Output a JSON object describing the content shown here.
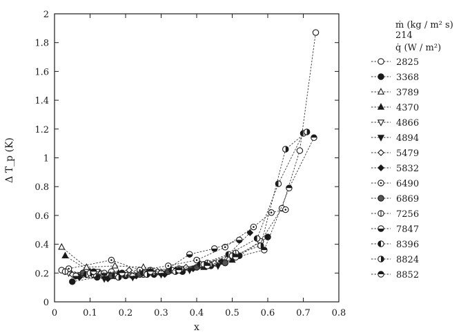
{
  "chart_data": {
    "type": "line",
    "xlabel": "x",
    "ylabel": "Δ T_p (K)",
    "xlim": [
      0,
      0.8
    ],
    "ylim": [
      0,
      2
    ],
    "xticks": [
      "0",
      "0.1",
      "0.2",
      "0.3",
      "0.4",
      "0.5",
      "0.6",
      "0.7",
      "0.8"
    ],
    "yticks": [
      "0",
      "0.2",
      "0.4",
      "0.6",
      "0.8",
      "1",
      "1.2",
      "1.4",
      "1.6",
      "1.8",
      "2"
    ],
    "grid": false,
    "legend_placement": "outside-right",
    "legend_header": {
      "mass_flux_label": "ṁ (kg / m² s)",
      "mass_flux_value": "214",
      "heat_flux_label": "q̇ (W / m²)"
    },
    "series": [
      {
        "name": "2825",
        "marker": "circle-open",
        "x": [
          0.02,
          0.08,
          0.16,
          0.25,
          0.33,
          0.42,
          0.5,
          0.58,
          0.64,
          0.69,
          0.735
        ],
        "y": [
          0.22,
          0.2,
          0.21,
          0.19,
          0.22,
          0.25,
          0.3,
          0.42,
          0.65,
          1.05,
          1.87
        ]
      },
      {
        "name": "3368",
        "marker": "circle-filled",
        "x": [
          0.05,
          0.12,
          0.2,
          0.28,
          0.36,
          0.44,
          0.52,
          0.6
        ],
        "y": [
          0.14,
          0.17,
          0.18,
          0.19,
          0.21,
          0.25,
          0.32,
          0.45
        ]
      },
      {
        "name": "3789",
        "marker": "triangle-up-open",
        "x": [
          0.02,
          0.09,
          0.17,
          0.25,
          0.33,
          0.41,
          0.49
        ],
        "y": [
          0.38,
          0.24,
          0.25,
          0.24,
          0.22,
          0.26,
          0.3
        ]
      },
      {
        "name": "4370",
        "marker": "triangle-up-filled",
        "x": [
          0.03,
          0.1,
          0.18,
          0.26,
          0.34,
          0.42,
          0.5
        ],
        "y": [
          0.32,
          0.21,
          0.2,
          0.2,
          0.22,
          0.24,
          0.29
        ]
      },
      {
        "name": "4866",
        "marker": "triangle-down-open",
        "x": [
          0.04,
          0.12,
          0.2,
          0.28,
          0.36,
          0.44
        ],
        "y": [
          0.2,
          0.21,
          0.19,
          0.2,
          0.23,
          0.26
        ]
      },
      {
        "name": "4894",
        "marker": "triangle-down-filled",
        "x": [
          0.06,
          0.14,
          0.22,
          0.3,
          0.38,
          0.46
        ],
        "y": [
          0.18,
          0.16,
          0.17,
          0.19,
          0.22,
          0.25
        ]
      },
      {
        "name": "5479",
        "marker": "diamond-open",
        "x": [
          0.05,
          0.13,
          0.21,
          0.29,
          0.37,
          0.45
        ],
        "y": [
          0.19,
          0.2,
          0.22,
          0.21,
          0.24,
          0.27
        ]
      },
      {
        "name": "5832",
        "marker": "diamond-filled",
        "x": [
          0.07,
          0.15,
          0.23,
          0.31,
          0.39,
          0.47,
          0.55
        ],
        "y": [
          0.17,
          0.16,
          0.18,
          0.19,
          0.23,
          0.28,
          0.48
        ]
      },
      {
        "name": "6490",
        "marker": "circle-dot",
        "x": [
          0.04,
          0.16,
          0.24,
          0.32,
          0.4,
          0.48,
          0.56,
          0.61,
          0.65
        ],
        "y": [
          0.23,
          0.29,
          0.22,
          0.25,
          0.29,
          0.38,
          0.52,
          0.62,
          0.64
        ]
      },
      {
        "name": "6869",
        "marker": "circle-filled-grey",
        "x": [
          0.08,
          0.16,
          0.24,
          0.32,
          0.4,
          0.48
        ],
        "y": [
          0.2,
          0.18,
          0.19,
          0.21,
          0.24,
          0.27
        ]
      },
      {
        "name": "7256",
        "marker": "circle-bar",
        "x": [
          0.03,
          0.11,
          0.19,
          0.27,
          0.35,
          0.43,
          0.51
        ],
        "y": [
          0.21,
          0.19,
          0.2,
          0.22,
          0.23,
          0.27,
          0.34
        ]
      },
      {
        "name": "7847",
        "marker": "circle-half-lower",
        "x": [
          0.06,
          0.14,
          0.22,
          0.3,
          0.38,
          0.45,
          0.52
        ],
        "y": [
          0.18,
          0.2,
          0.18,
          0.2,
          0.33,
          0.37,
          0.43
        ]
      },
      {
        "name": "8396",
        "marker": "circle-half-left",
        "x": [
          0.09,
          0.17,
          0.25,
          0.33,
          0.41,
          0.49,
          0.57,
          0.63,
          0.7
        ],
        "y": [
          0.19,
          0.18,
          0.2,
          0.22,
          0.26,
          0.33,
          0.44,
          0.82,
          1.17
        ]
      },
      {
        "name": "8824",
        "marker": "circle-half-right",
        "x": [
          0.1,
          0.18,
          0.26,
          0.34,
          0.42,
          0.5,
          0.58,
          0.65,
          0.71
        ],
        "y": [
          0.2,
          0.17,
          0.19,
          0.21,
          0.26,
          0.32,
          0.39,
          1.06,
          1.18
        ]
      },
      {
        "name": "8852",
        "marker": "circle-half-upper",
        "x": [
          0.11,
          0.19,
          0.27,
          0.35,
          0.43,
          0.51,
          0.59,
          0.66,
          0.73
        ],
        "y": [
          0.21,
          0.2,
          0.21,
          0.22,
          0.25,
          0.31,
          0.36,
          0.79,
          1.14
        ]
      }
    ]
  }
}
